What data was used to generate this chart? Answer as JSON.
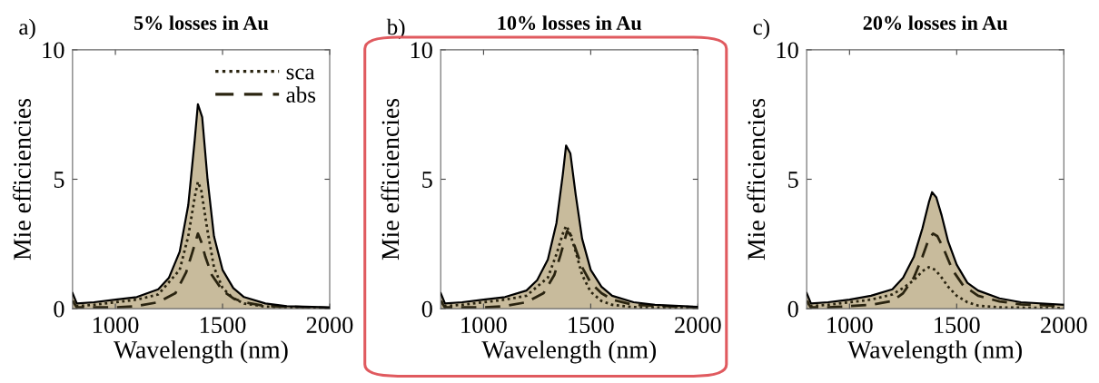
{
  "chart_data": [
    {
      "type": "area",
      "title": "5% losses in Au",
      "xlabel": "Wavelength (nm)",
      "ylabel": "Mie efficiencies",
      "annotations": [
        "a)"
      ],
      "xlim": [
        800,
        2000
      ],
      "xticks": [
        1000,
        1500,
        2000
      ],
      "ylim": [
        0,
        10
      ],
      "yticks": [
        0,
        5,
        10
      ],
      "grid": false,
      "legend": "top right",
      "series": [
        {
          "color": "#c8bb9c",
          "x": [
            800,
            820,
            900,
            1000,
            1100,
            1200,
            1250,
            1300,
            1340,
            1370,
            1385,
            1405,
            1430,
            1460,
            1500,
            1550,
            1600,
            1700,
            1800,
            2000
          ],
          "values": [
            0.6,
            0.2,
            0.25,
            0.35,
            0.45,
            0.75,
            1.2,
            2.2,
            4.0,
            6.5,
            7.9,
            7.4,
            5.0,
            2.8,
            1.5,
            0.8,
            0.45,
            0.2,
            0.1,
            0.05
          ]
        },
        {
          "type": "line",
          "name": "sca",
          "color": "#2a2410",
          "line_style": "dotted",
          "x": [
            800,
            820,
            900,
            1000,
            1100,
            1200,
            1300,
            1340,
            1370,
            1385,
            1400,
            1430,
            1460,
            1500,
            1550,
            1600,
            1700,
            2000
          ],
          "values": [
            0.3,
            0.1,
            0.15,
            0.25,
            0.35,
            0.55,
            1.5,
            2.8,
            4.3,
            4.9,
            4.6,
            3.0,
            1.6,
            0.8,
            0.4,
            0.2,
            0.08,
            0.02
          ]
        },
        {
          "type": "line",
          "name": "abs",
          "color": "#2a2410",
          "line_style": "dashed",
          "x": [
            800,
            820,
            900,
            1000,
            1100,
            1200,
            1280,
            1330,
            1360,
            1385,
            1400,
            1420,
            1450,
            1500,
            1550,
            1600,
            1700,
            2000
          ],
          "values": [
            0.3,
            0.05,
            0.05,
            0.05,
            0.1,
            0.25,
            0.6,
            1.4,
            2.2,
            2.9,
            2.6,
            2.0,
            1.3,
            0.7,
            0.4,
            0.25,
            0.1,
            0.03
          ]
        }
      ]
    },
    {
      "type": "area",
      "title": "10% losses in Au",
      "xlabel": "Wavelength (nm)",
      "ylabel": "Mie efficiencies",
      "annotations": [
        "b)"
      ],
      "xlim": [
        800,
        2000
      ],
      "xticks": [
        1000,
        1500,
        2000
      ],
      "ylim": [
        0,
        10
      ],
      "yticks": [
        0,
        5,
        10
      ],
      "grid": false,
      "series": [
        {
          "color": "#c8bb9c",
          "x": [
            800,
            820,
            900,
            1000,
            1100,
            1200,
            1250,
            1300,
            1340,
            1370,
            1385,
            1405,
            1430,
            1460,
            1500,
            1550,
            1600,
            1700,
            1800,
            2000
          ],
          "values": [
            0.6,
            0.2,
            0.25,
            0.35,
            0.45,
            0.7,
            1.1,
            1.9,
            3.3,
            5.2,
            6.3,
            6.0,
            4.4,
            2.7,
            1.5,
            0.85,
            0.5,
            0.25,
            0.15,
            0.07
          ]
        },
        {
          "type": "line",
          "color": "#2a2410",
          "line_style": "dotted",
          "x": [
            800,
            820,
            900,
            1000,
            1100,
            1200,
            1300,
            1340,
            1370,
            1385,
            1400,
            1430,
            1460,
            1500,
            1550,
            1600,
            1700,
            2000
          ],
          "values": [
            0.3,
            0.1,
            0.15,
            0.25,
            0.35,
            0.5,
            1.2,
            2.1,
            2.9,
            3.2,
            3.0,
            2.2,
            1.3,
            0.65,
            0.3,
            0.15,
            0.06,
            0.02
          ]
        },
        {
          "type": "line",
          "color": "#2a2410",
          "line_style": "dashed",
          "x": [
            800,
            820,
            900,
            1000,
            1100,
            1200,
            1280,
            1330,
            1360,
            1390,
            1410,
            1430,
            1460,
            1500,
            1550,
            1600,
            1700,
            2000
          ],
          "values": [
            0.3,
            0.05,
            0.05,
            0.05,
            0.1,
            0.25,
            0.6,
            1.3,
            2.1,
            3.0,
            2.8,
            2.3,
            1.6,
            1.0,
            0.6,
            0.35,
            0.15,
            0.05
          ]
        }
      ]
    },
    {
      "type": "area",
      "title": "20% losses in Au",
      "xlabel": "Wavelength (nm)",
      "ylabel": "Mie efficiencies",
      "annotations": [
        "c)"
      ],
      "xlim": [
        800,
        2000
      ],
      "xticks": [
        1000,
        1500,
        2000
      ],
      "ylim": [
        0,
        10
      ],
      "yticks": [
        0,
        5,
        10
      ],
      "grid": false,
      "series": [
        {
          "color": "#c8bb9c",
          "x": [
            800,
            820,
            900,
            1000,
            1100,
            1200,
            1250,
            1300,
            1340,
            1370,
            1385,
            1405,
            1430,
            1460,
            1500,
            1550,
            1600,
            1700,
            1800,
            2000
          ],
          "values": [
            0.6,
            0.2,
            0.25,
            0.35,
            0.5,
            0.75,
            1.2,
            2.0,
            3.1,
            4.1,
            4.5,
            4.3,
            3.6,
            2.6,
            1.7,
            1.0,
            0.7,
            0.4,
            0.25,
            0.15
          ]
        },
        {
          "type": "line",
          "color": "#2a2410",
          "line_style": "dotted",
          "x": [
            800,
            820,
            900,
            1000,
            1100,
            1200,
            1250,
            1300,
            1340,
            1370,
            1400,
            1430,
            1460,
            1500,
            1550,
            1600,
            1700,
            2000
          ],
          "values": [
            0.3,
            0.1,
            0.15,
            0.25,
            0.35,
            0.55,
            0.8,
            1.1,
            1.45,
            1.6,
            1.5,
            1.2,
            0.85,
            0.5,
            0.25,
            0.12,
            0.05,
            0.02
          ]
        },
        {
          "type": "line",
          "color": "#2a2410",
          "line_style": "dashed",
          "x": [
            800,
            820,
            900,
            1000,
            1100,
            1200,
            1250,
            1300,
            1340,
            1370,
            1390,
            1410,
            1440,
            1480,
            1530,
            1600,
            1700,
            1800,
            2000
          ],
          "values": [
            0.3,
            0.05,
            0.05,
            0.1,
            0.15,
            0.3,
            0.6,
            1.2,
            2.0,
            2.7,
            2.9,
            2.8,
            2.3,
            1.5,
            0.9,
            0.5,
            0.28,
            0.17,
            0.1
          ]
        }
      ]
    }
  ]
}
